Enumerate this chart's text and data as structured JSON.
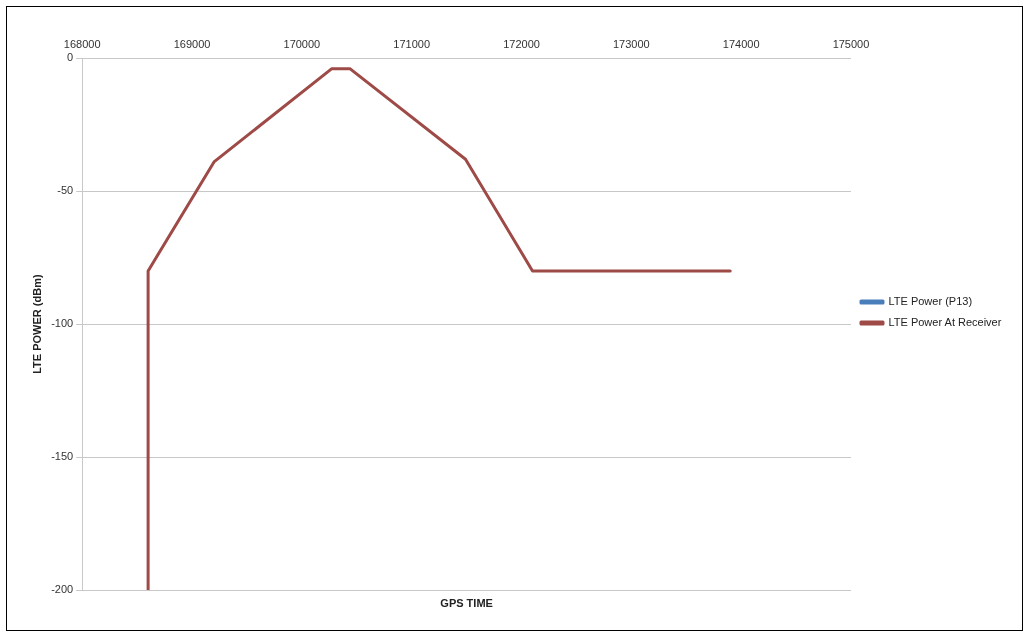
{
  "chart_data": {
    "type": "line",
    "xlabel": "GPS TIME",
    "ylabel": "LTE POWER (dBm)",
    "x": [
      168600,
      168600,
      169200,
      170270,
      170440,
      171490,
      172100,
      173900
    ],
    "series": [
      {
        "name": "LTE Power (P13)",
        "color": "#4a7ebb",
        "values": [
          null,
          null,
          null,
          null,
          null,
          null,
          null,
          null
        ]
      },
      {
        "name": "LTE Power At Receiver",
        "color": "#9e4a47",
        "values": [
          -200,
          -80,
          -39,
          -4,
          -4,
          -38,
          -80,
          -80
        ]
      }
    ],
    "xlim": [
      168000,
      175000
    ],
    "xticks": [
      168000,
      169000,
      170000,
      171000,
      172000,
      173000,
      174000,
      175000
    ],
    "ylim": [
      -200,
      0
    ],
    "yticks": [
      -200,
      -150,
      -100,
      -50,
      0
    ],
    "grid": "y",
    "legend": "right",
    "marker": "none",
    "line_style": "solid"
  }
}
